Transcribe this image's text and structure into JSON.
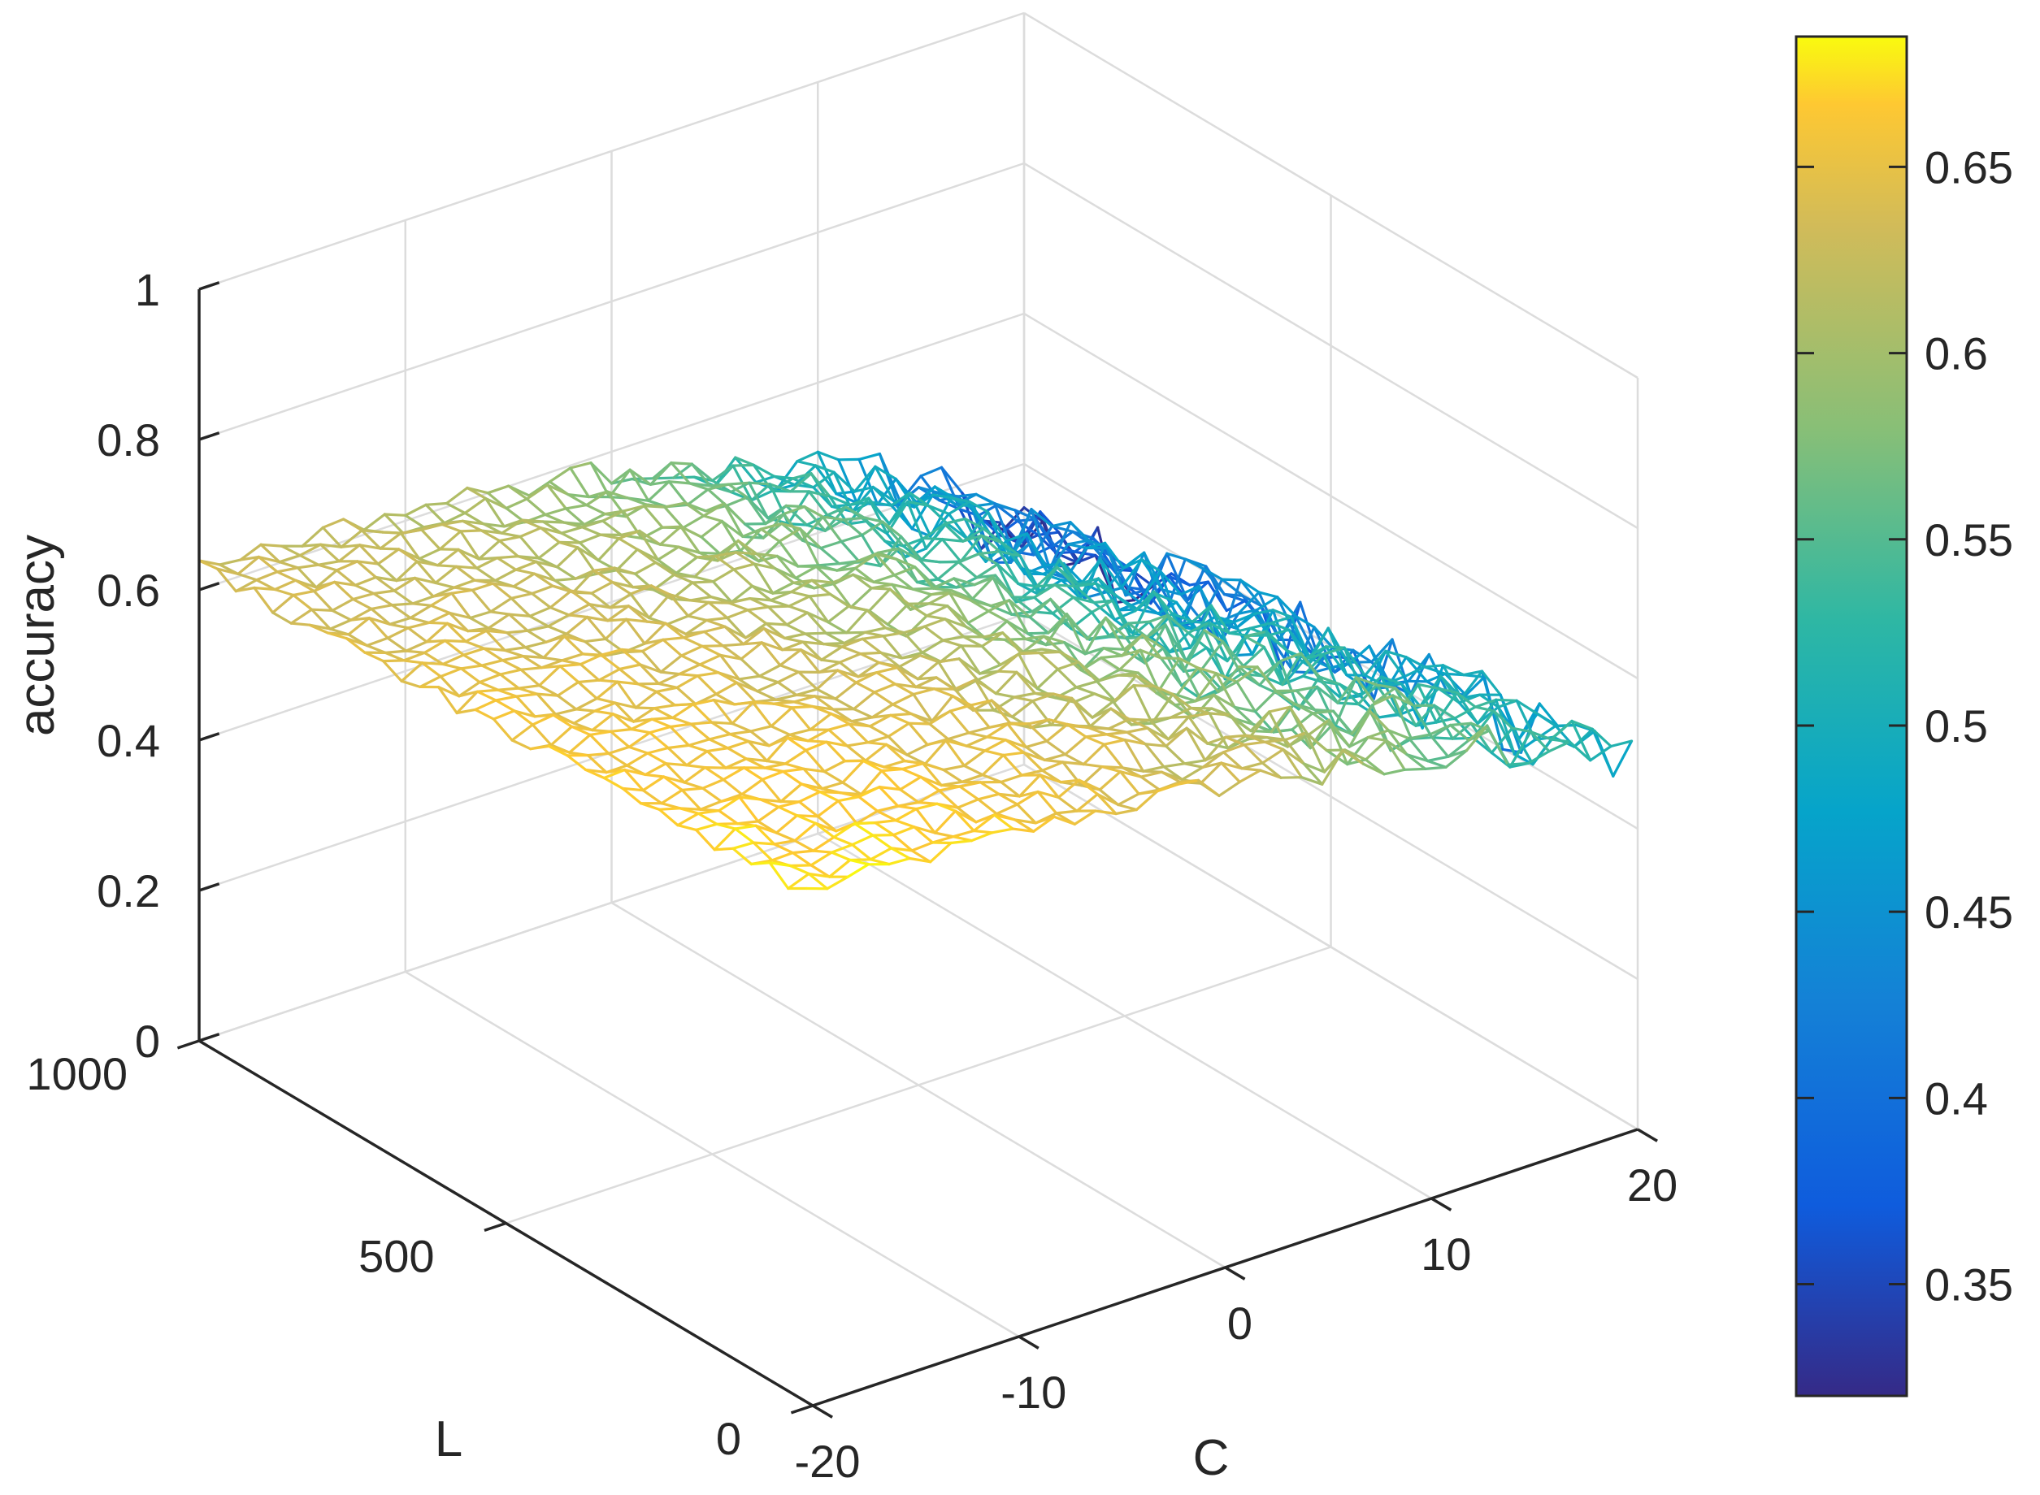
{
  "chart_data": {
    "type": "surface",
    "xlabel": "C",
    "ylabel": "L",
    "zlabel": "accuracy",
    "xlim": [
      -20,
      20
    ],
    "ylim": [
      0,
      1000
    ],
    "zlim": [
      0,
      1
    ],
    "x_ticks": [
      -20,
      -10,
      0,
      10,
      20
    ],
    "y_ticks": [
      0,
      500,
      1000
    ],
    "z_ticks": [
      0,
      0.2,
      0.4,
      0.6,
      0.8,
      1
    ],
    "x_tick_labels": [
      "-20",
      "-10",
      "0",
      "10",
      "20"
    ],
    "y_tick_labels": [
      "0",
      "500",
      "1000"
    ],
    "z_tick_labels": [
      "0",
      "0.2",
      "0.4",
      "0.6",
      "0.8",
      "1"
    ],
    "grid": true,
    "surface_style": "mesh",
    "colormap": "parula",
    "grid_resolution": {
      "c_points": 41,
      "l_points": 34,
      "l_start": 10,
      "l_end": 1000
    },
    "surface_samples": [
      {
        "C": -20,
        "L": 1000,
        "accuracy": 0.6
      },
      {
        "C": -20,
        "L": 500,
        "accuracy": 0.65
      },
      {
        "C": -20,
        "L": 10,
        "accuracy": 0.68
      },
      {
        "C": 0,
        "L": 1000,
        "accuracy": 0.57
      },
      {
        "C": 0,
        "L": 500,
        "accuracy": 0.62
      },
      {
        "C": 0,
        "L": 10,
        "accuracy": 0.66
      },
      {
        "C": 20,
        "L": 1000,
        "accuracy": 0.32
      },
      {
        "C": 20,
        "L": 500,
        "accuracy": 0.44
      },
      {
        "C": 20,
        "L": 10,
        "accuracy": 0.55
      }
    ],
    "colorbar": {
      "range": [
        0.32,
        0.685
      ],
      "ticks": [
        0.35,
        0.4,
        0.45,
        0.5,
        0.55,
        0.6,
        0.65
      ],
      "tick_labels": [
        "0.35",
        "0.4",
        "0.45",
        "0.5",
        "0.55",
        "0.6",
        "0.65"
      ]
    }
  }
}
